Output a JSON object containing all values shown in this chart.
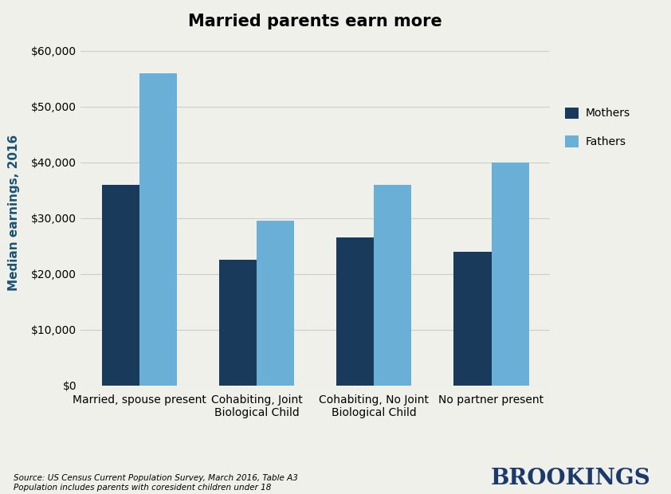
{
  "title": "Married parents earn more",
  "categories": [
    "Married, spouse present",
    "Cohabiting, Joint\nBiological Child",
    "Cohabiting, No Joint\nBiological Child",
    "No partner present"
  ],
  "mothers": [
    36000,
    22500,
    26500,
    24000
  ],
  "fathers": [
    56000,
    29500,
    36000,
    40000
  ],
  "mother_color": "#1a3a5c",
  "father_color": "#6aafd6",
  "ylabel": "Median earnings, 2016",
  "ylabel_color": "#1a5276",
  "ylim": [
    0,
    62000
  ],
  "yticks": [
    0,
    10000,
    20000,
    30000,
    40000,
    50000,
    60000
  ],
  "legend_labels": [
    "Mothers",
    "Fathers"
  ],
  "source_line1": "Source: US Census Current Population Survey, March 2016, Table A3",
  "source_line2": "Population includes parents with coresident children under 18",
  "brookings_text": "BROOKINGS",
  "background_color": "#f0f0eb",
  "grid_color": "#cccccc",
  "bar_width": 0.32,
  "figure_width": 8.42,
  "figure_height": 6.2
}
